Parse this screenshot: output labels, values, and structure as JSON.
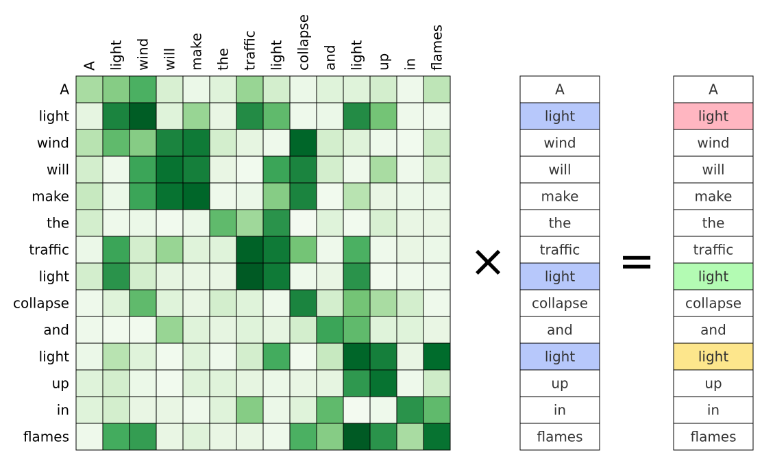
{
  "tokens": [
    "A",
    "light",
    "wind",
    "will",
    "make",
    "the",
    "traffic",
    "light",
    "collapse",
    "and",
    "light",
    "up",
    "in",
    "flames"
  ],
  "operators": {
    "multiply": "×",
    "equals": "="
  },
  "matrix": {
    "colormap": "Greens",
    "values": [
      [
        0.35,
        0.45,
        0.6,
        0.18,
        0.08,
        0.15,
        0.4,
        0.2,
        0.08,
        0.15,
        0.15,
        0.2,
        0.06,
        0.28
      ],
      [
        0.12,
        0.78,
        0.98,
        0.15,
        0.4,
        0.1,
        0.75,
        0.55,
        0.06,
        0.08,
        0.75,
        0.5,
        0.06,
        0.06
      ],
      [
        0.3,
        0.55,
        0.45,
        0.78,
        0.82,
        0.2,
        0.12,
        0.06,
        0.92,
        0.2,
        0.15,
        0.06,
        0.04,
        0.22
      ],
      [
        0.2,
        0.06,
        0.65,
        0.85,
        0.8,
        0.1,
        0.04,
        0.65,
        0.78,
        0.2,
        0.06,
        0.35,
        0.06,
        0.18
      ],
      [
        0.25,
        0.08,
        0.65,
        0.85,
        0.92,
        0.06,
        0.08,
        0.45,
        0.78,
        0.04,
        0.3,
        0.1,
        0.08,
        0.08
      ],
      [
        0.2,
        0.06,
        0.08,
        0.04,
        0.08,
        0.55,
        0.38,
        0.72,
        0.03,
        0.15,
        0.04,
        0.18,
        0.1,
        0.1
      ],
      [
        0.08,
        0.65,
        0.2,
        0.4,
        0.15,
        0.15,
        0.95,
        0.82,
        0.5,
        0.06,
        0.6,
        0.06,
        0.1,
        0.08
      ],
      [
        0.2,
        0.72,
        0.2,
        0.12,
        0.1,
        0.1,
        1.0,
        0.82,
        0.06,
        0.1,
        0.72,
        0.04,
        0.06,
        0.06
      ],
      [
        0.06,
        0.15,
        0.55,
        0.15,
        0.1,
        0.2,
        0.15,
        0.06,
        0.78,
        0.2,
        0.5,
        0.35,
        0.2,
        0.06
      ],
      [
        0.06,
        0.04,
        0.04,
        0.4,
        0.15,
        0.12,
        0.15,
        0.12,
        0.2,
        0.65,
        0.55,
        0.15,
        0.15,
        0.1
      ],
      [
        0.08,
        0.3,
        0.15,
        0.04,
        0.15,
        0.06,
        0.2,
        0.62,
        0.04,
        0.25,
        0.92,
        0.8,
        0.1,
        0.88
      ],
      [
        0.15,
        0.2,
        0.08,
        0.04,
        0.15,
        0.15,
        0.12,
        0.08,
        0.1,
        0.12,
        0.7,
        0.85,
        0.06,
        0.22
      ],
      [
        0.15,
        0.2,
        0.1,
        0.1,
        0.06,
        0.15,
        0.45,
        0.08,
        0.15,
        0.55,
        0.03,
        0.06,
        0.72,
        0.55
      ],
      [
        0.06,
        0.62,
        0.68,
        0.1,
        0.15,
        0.1,
        0.1,
        0.06,
        0.6,
        0.45,
        1.0,
        0.72,
        0.35,
        0.85
      ]
    ]
  },
  "input_column": {
    "highlight_color": "#b7c8fb",
    "highlight_indices": [
      1,
      7,
      10
    ]
  },
  "output_column": {
    "highlights": [
      {
        "index": 1,
        "color": "#ffb6c1"
      },
      {
        "index": 7,
        "color": "#b3fbb3"
      },
      {
        "index": 10,
        "color": "#fde68c"
      }
    ]
  }
}
